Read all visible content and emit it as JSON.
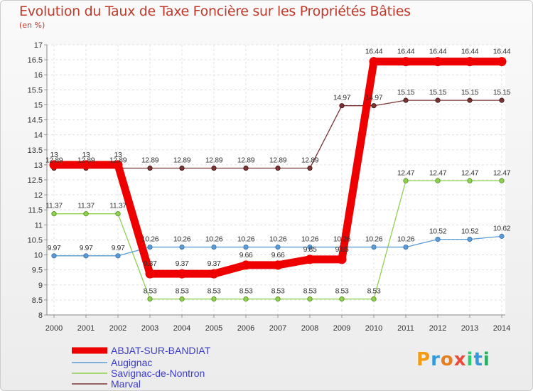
{
  "chart_data": {
    "type": "line",
    "title": "Evolution du Taux de Taxe Foncière sur les Propriétés Bâties",
    "unit_label": "(en %)",
    "x": [
      2000,
      2001,
      2002,
      2003,
      2004,
      2005,
      2006,
      2007,
      2008,
      2009,
      2010,
      2011,
      2012,
      2013,
      2014
    ],
    "ylim": [
      8,
      17
    ],
    "yticks": [
      "8",
      "8.5",
      "9",
      "9.5",
      "10",
      "10.5",
      "11",
      "11.5",
      "12",
      "12.5",
      "13",
      "13.5",
      "14",
      "14.5",
      "15",
      "15.5",
      "16",
      "16.5",
      "17"
    ],
    "series": [
      {
        "name": "ABJAT-SUR-BANDIAT",
        "color": "#ee0000",
        "values": [
          13,
          13,
          13,
          9.37,
          9.37,
          9.37,
          9.66,
          9.66,
          9.85,
          9.85,
          16.44,
          16.44,
          16.44,
          16.44,
          16.44
        ],
        "labels": [
          "13",
          "13",
          "13",
          "9.37",
          "9.37",
          "9.37",
          "9.66",
          "9.66",
          "9.85",
          "9.85",
          "16.44",
          "16.44",
          "16.44",
          "16.44",
          "16.44"
        ]
      },
      {
        "name": "Augignac",
        "color": "#5b9bd5",
        "values": [
          9.97,
          9.97,
          9.97,
          10.26,
          10.26,
          10.26,
          10.26,
          10.26,
          10.26,
          10.26,
          10.26,
          10.26,
          10.52,
          10.52,
          10.62
        ],
        "labels": [
          "9.97",
          "9.97",
          "9.97",
          "10.26",
          "10.26",
          "10.26",
          "10.26",
          "10.26",
          "10.26",
          "10.26",
          "10.26",
          "10.26",
          "10.52",
          "10.52",
          "10.62"
        ]
      },
      {
        "name": "Savignac-de-Nontron",
        "color": "#8fd14f",
        "values": [
          11.37,
          11.37,
          11.37,
          8.53,
          8.53,
          8.53,
          8.53,
          8.53,
          8.53,
          8.53,
          8.53,
          12.47,
          12.47,
          12.47,
          12.47
        ],
        "labels": [
          "11.37",
          "11.37",
          "11.37",
          "8.53",
          "8.53",
          "8.53",
          "8.53",
          "8.53",
          "8.53",
          "8.53",
          "8.53",
          "12.47",
          "12.47",
          "12.47",
          "12.47"
        ]
      },
      {
        "name": "Marval",
        "color": "#7b3434",
        "values": [
          12.89,
          12.89,
          12.89,
          12.89,
          12.89,
          12.89,
          12.89,
          12.89,
          12.89,
          14.97,
          14.97,
          15.15,
          15.15,
          15.15,
          15.15
        ],
        "labels": [
          "12.89",
          "12.89",
          "12.89",
          "12.89",
          "12.89",
          "12.89",
          "12.89",
          "12.89",
          "12.89",
          "14.97",
          "14.97",
          "15.15",
          "15.15",
          "15.15",
          "15.15"
        ]
      }
    ]
  },
  "logo": {
    "letters": [
      "P",
      "r",
      "o",
      "x",
      "i",
      "t",
      "i"
    ],
    "colors": [
      "#f39c12",
      "#3498db",
      "#e67e22",
      "#e74c3c",
      "#2ecc71",
      "#3498db",
      "#27ae60"
    ]
  }
}
